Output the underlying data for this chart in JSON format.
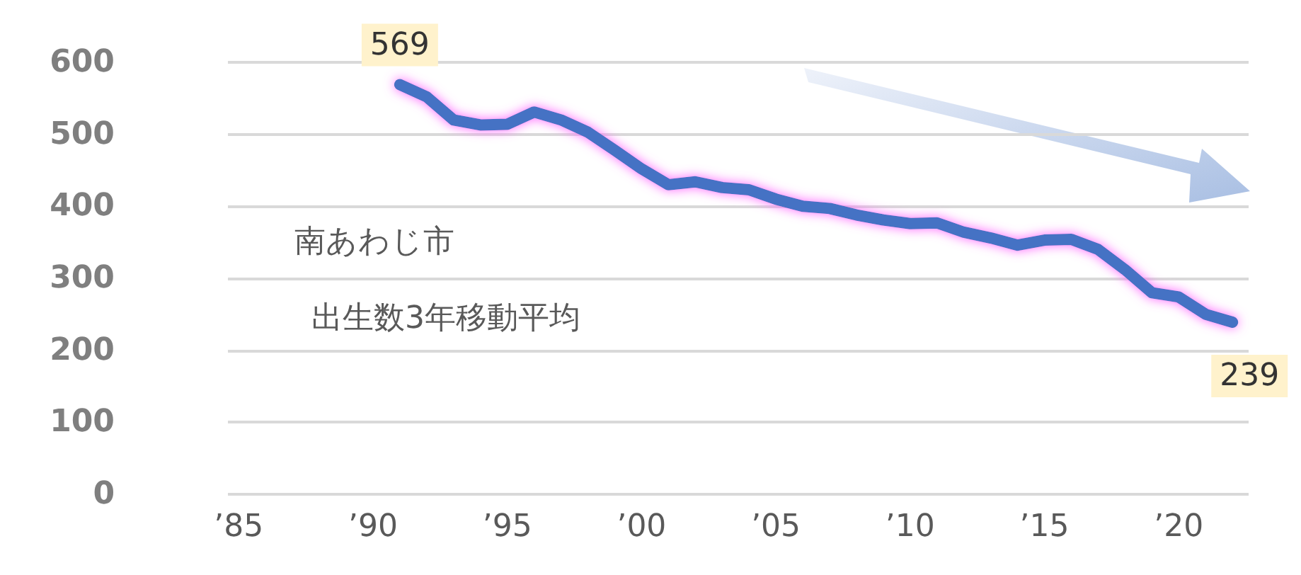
{
  "chart_data": {
    "type": "line",
    "annotations": [
      "南あわじ市",
      "出生数3年移動平均"
    ],
    "x": [
      1991,
      1992,
      1993,
      1994,
      1995,
      1996,
      1997,
      1998,
      1999,
      2000,
      2001,
      2002,
      2003,
      2004,
      2005,
      2006,
      2007,
      2008,
      2009,
      2010,
      2011,
      2012,
      2013,
      2014,
      2015,
      2016,
      2017,
      2018,
      2019,
      2020,
      2021,
      2022
    ],
    "series": [
      {
        "color": "#4472c4",
        "values": [
          569,
          552,
          520,
          513,
          514,
          531,
          520,
          503,
          478,
          452,
          430,
          434,
          426,
          423,
          410,
          400,
          397,
          388,
          381,
          376,
          377,
          364,
          356,
          346,
          353,
          354,
          340,
          312,
          280,
          274,
          250,
          239
        ],
        "value_labels": [
          "569",
          null,
          null,
          null,
          null,
          null,
          null,
          null,
          null,
          null,
          null,
          null,
          null,
          null,
          null,
          null,
          null,
          null,
          null,
          null,
          null,
          null,
          null,
          null,
          null,
          null,
          null,
          null,
          null,
          null,
          null,
          "239"
        ]
      }
    ],
    "xlim": [
      1984.6,
      2022.6
    ],
    "xticks": [
      {
        "value": 1985,
        "label": "’85"
      },
      {
        "value": 1990,
        "label": "’90"
      },
      {
        "value": 1995,
        "label": "’95"
      },
      {
        "value": 2000,
        "label": "’00"
      },
      {
        "value": 2005,
        "label": "’05"
      },
      {
        "value": 2010,
        "label": "’10"
      },
      {
        "value": 2015,
        "label": "’15"
      },
      {
        "value": 2020,
        "label": "’20"
      }
    ],
    "ylim": [
      0,
      600
    ],
    "yticks": [
      0,
      100,
      200,
      300,
      400,
      500,
      600
    ],
    "grid": "y",
    "marker": "none",
    "line_style": "solid"
  }
}
